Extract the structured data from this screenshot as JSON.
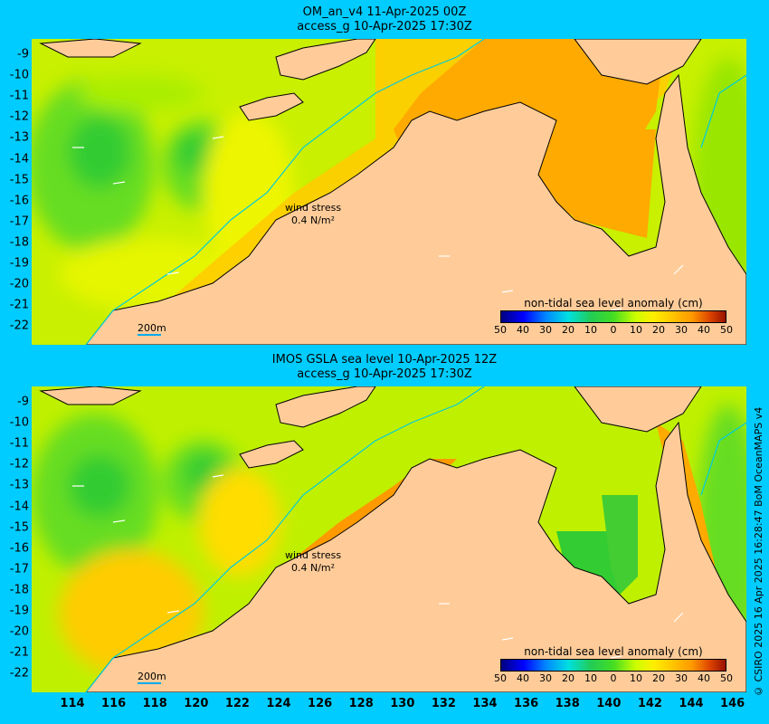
{
  "panels": [
    {
      "title_line1": "OM_an_v4  11-Apr-2025 00Z",
      "title_line2": "access_g 10-Apr-2025 17:30Z",
      "wind_label": "wind stress",
      "wind_value": "0.4 N/m²",
      "contour_label": "200m",
      "legend_title": "non-tidal sea level anomaly (cm)"
    },
    {
      "title_line1": "IMOS GSLA sea level  10-Apr-2025 12Z",
      "title_line2": "access_g 10-Apr-2025 17:30Z",
      "wind_label": "wind stress",
      "wind_value": "0.4 N/m²",
      "contour_label": "200m",
      "legend_title": "non-tidal sea level anomaly (cm)"
    }
  ],
  "y_axis_labels": [
    "-9",
    "-10",
    "-11",
    "-12",
    "-13",
    "-14",
    "-15",
    "-16",
    "-17",
    "-18",
    "-19",
    "-20",
    "-21",
    "-22"
  ],
  "x_axis_labels": [
    "114",
    "116",
    "118",
    "120",
    "122",
    "124",
    "126",
    "128",
    "130",
    "132",
    "134",
    "136",
    "138",
    "140",
    "142",
    "144",
    "146"
  ],
  "legend_ticks": [
    "50",
    "40",
    "30",
    "20",
    "10",
    "0",
    "10",
    "20",
    "30",
    "40",
    "50"
  ],
  "copyright": "© CSIRO 2025  16 Apr 2025 16:28:47 BoM OceanMAPS v4",
  "colors": {
    "background": "#00ccff",
    "land": "#ffcc99",
    "coast": "#000000",
    "isobath": "#00ccdd"
  }
}
